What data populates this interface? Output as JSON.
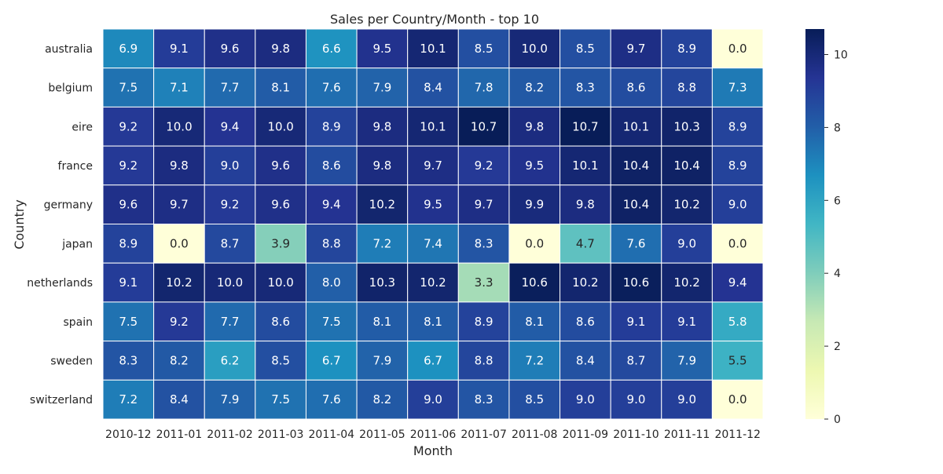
{
  "chart_data": {
    "type": "heatmap",
    "title": "Sales per Country/Month - top 10",
    "xlabel": "Month",
    "ylabel": "Country",
    "x": [
      "2010-12",
      "2011-01",
      "2011-02",
      "2011-03",
      "2011-04",
      "2011-05",
      "2011-06",
      "2011-07",
      "2011-08",
      "2011-09",
      "2011-10",
      "2011-11",
      "2011-12"
    ],
    "y": [
      "australia",
      "belgium",
      "eire",
      "france",
      "germany",
      "japan",
      "netherlands",
      "spain",
      "sweden",
      "switzerland"
    ],
    "values": [
      [
        6.9,
        9.1,
        9.6,
        9.8,
        6.6,
        9.5,
        10.1,
        8.5,
        10.0,
        8.5,
        9.7,
        8.9,
        0.0
      ],
      [
        7.5,
        7.1,
        7.7,
        8.1,
        7.6,
        7.9,
        8.4,
        7.8,
        8.2,
        8.3,
        8.6,
        8.8,
        7.3
      ],
      [
        9.2,
        10.0,
        9.4,
        10.0,
        8.9,
        9.8,
        10.1,
        10.7,
        9.8,
        10.7,
        10.1,
        10.3,
        8.9
      ],
      [
        9.2,
        9.8,
        9.0,
        9.6,
        8.6,
        9.8,
        9.7,
        9.2,
        9.5,
        10.1,
        10.4,
        10.4,
        8.9
      ],
      [
        9.6,
        9.7,
        9.2,
        9.6,
        9.4,
        10.2,
        9.5,
        9.7,
        9.9,
        9.8,
        10.4,
        10.2,
        9.0
      ],
      [
        8.9,
        0.0,
        8.7,
        3.9,
        8.8,
        7.2,
        7.4,
        8.3,
        0.0,
        4.7,
        7.6,
        9.0,
        0.0
      ],
      [
        9.1,
        10.2,
        10.0,
        10.0,
        8.0,
        10.3,
        10.2,
        3.3,
        10.6,
        10.2,
        10.6,
        10.2,
        9.4
      ],
      [
        7.5,
        9.2,
        7.7,
        8.6,
        7.5,
        8.1,
        8.1,
        8.9,
        8.1,
        8.6,
        9.1,
        9.1,
        5.8
      ],
      [
        8.3,
        8.2,
        6.2,
        8.5,
        6.7,
        7.9,
        6.7,
        8.8,
        7.2,
        8.4,
        8.7,
        7.9,
        5.5
      ],
      [
        7.2,
        8.4,
        7.9,
        7.5,
        7.6,
        8.2,
        9.0,
        8.3,
        8.5,
        9.0,
        9.0,
        9.0,
        0.0
      ]
    ],
    "colormap": "YlGnBu",
    "vmin": 0,
    "vmax": 10.7,
    "colorbar_ticks": [
      0,
      2,
      4,
      6,
      8,
      10
    ]
  }
}
